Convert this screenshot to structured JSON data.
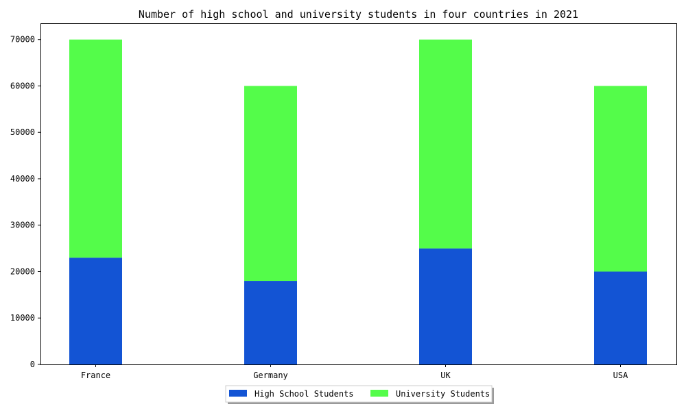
{
  "chart_data": {
    "type": "bar",
    "stacked": true,
    "title": "Number of high school and university students in four countries in 2021",
    "xlabel": "",
    "ylabel": "",
    "categories": [
      "France",
      "Germany",
      "UK",
      "USA"
    ],
    "series": [
      {
        "name": "High School Students",
        "values": [
          23000,
          18000,
          25000,
          20000
        ],
        "color": "#1354d4"
      },
      {
        "name": "University Students",
        "values": [
          47000,
          42000,
          45000,
          40000
        ],
        "color": "#54fc4a"
      }
    ],
    "ylim": [
      0,
      73500
    ],
    "yticks": [
      0,
      10000,
      20000,
      30000,
      40000,
      50000,
      60000,
      70000
    ],
    "grid": false,
    "legend_position": "bottom-center"
  }
}
